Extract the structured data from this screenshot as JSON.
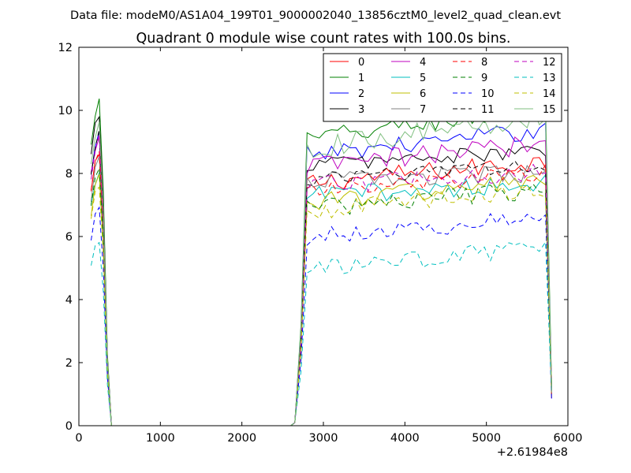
{
  "header": {
    "suptitle": "Data file: modeM0/AS1A04_199T01_9000002040_13856cztM0_level2_quad_clean.evt"
  },
  "chart_data": {
    "type": "line",
    "title": "Quadrant 0 module wise count rates with 100.0s bins.",
    "xlabel": "",
    "ylabel": "",
    "x_offset_label": "+2.61984e8",
    "xlim": [
      0,
      6000
    ],
    "ylim": [
      0,
      12
    ],
    "xticks": [
      0,
      1000,
      2000,
      3000,
      4000,
      5000,
      6000
    ],
    "yticks": [
      0,
      2,
      4,
      6,
      8,
      10,
      12
    ],
    "grid": false,
    "legend": {
      "placement": "top-right",
      "columns": 4
    },
    "gaps": [
      [
        450,
        2600
      ]
    ],
    "segments": {
      "first": {
        "x_start": 150,
        "step": 50,
        "count": 6
      },
      "second": {
        "x_start": 2650,
        "step": 75,
        "count": 43
      }
    },
    "series": [
      {
        "name": "0",
        "color": "#ff0000",
        "dash": "solid",
        "peak1": 8.6,
        "level": 7.7,
        "trend": 0.7,
        "noise": 0.32
      },
      {
        "name": "1",
        "color": "#008000",
        "dash": "solid",
        "peak1": 10.3,
        "level": 9.1,
        "trend": 1.0,
        "noise": 0.3
      },
      {
        "name": "2",
        "color": "#0000ff",
        "dash": "solid",
        "peak1": 9.2,
        "level": 8.6,
        "trend": 0.8,
        "noise": 0.28
      },
      {
        "name": "3",
        "color": "#000000",
        "dash": "solid",
        "peak1": 9.9,
        "level": 8.3,
        "trend": 0.4,
        "noise": 0.25
      },
      {
        "name": "4",
        "color": "#bf00bf",
        "dash": "solid",
        "peak1": 9.2,
        "level": 8.2,
        "trend": 0.8,
        "noise": 0.35
      },
      {
        "name": "5",
        "color": "#00bfbf",
        "dash": "solid",
        "peak1": 8.0,
        "level": 7.3,
        "trend": 0.4,
        "noise": 0.3
      },
      {
        "name": "6",
        "color": "#bfbf00",
        "dash": "solid",
        "peak1": 7.9,
        "level": 7.1,
        "trend": 0.7,
        "noise": 0.32
      },
      {
        "name": "7",
        "color": "#808080",
        "dash": "solid",
        "peak1": 8.4,
        "level": 7.8,
        "trend": 0.2,
        "noise": 0.28
      },
      {
        "name": "8",
        "color": "#ff0000",
        "dash": "dashed",
        "peak1": 8.8,
        "level": 7.4,
        "trend": 0.6,
        "noise": 0.3
      },
      {
        "name": "9",
        "color": "#008000",
        "dash": "dashed",
        "peak1": 8.2,
        "level": 6.9,
        "trend": 0.6,
        "noise": 0.3
      },
      {
        "name": "10",
        "color": "#0000ff",
        "dash": "dashed",
        "peak1": 6.9,
        "level": 6.0,
        "trend": 0.6,
        "noise": 0.28
      },
      {
        "name": "11",
        "color": "#000000",
        "dash": "dashed",
        "peak1": 9.3,
        "level": 7.8,
        "trend": 0.5,
        "noise": 0.22
      },
      {
        "name": "12",
        "color": "#bf00bf",
        "dash": "dashed",
        "peak1": 9.1,
        "level": 7.6,
        "trend": 0.5,
        "noise": 0.3
      },
      {
        "name": "13",
        "color": "#00bfbf",
        "dash": "dashed",
        "peak1": 5.9,
        "level": 4.9,
        "trend": 0.8,
        "noise": 0.3
      },
      {
        "name": "14",
        "color": "#bfbf00",
        "dash": "dashed",
        "peak1": 7.6,
        "level": 6.8,
        "trend": 0.7,
        "noise": 0.28
      },
      {
        "name": "15",
        "color": "#7fbf7f",
        "dash": "solid",
        "peak1": 9.6,
        "level": 8.8,
        "trend": 1.0,
        "noise": 0.35
      }
    ]
  }
}
